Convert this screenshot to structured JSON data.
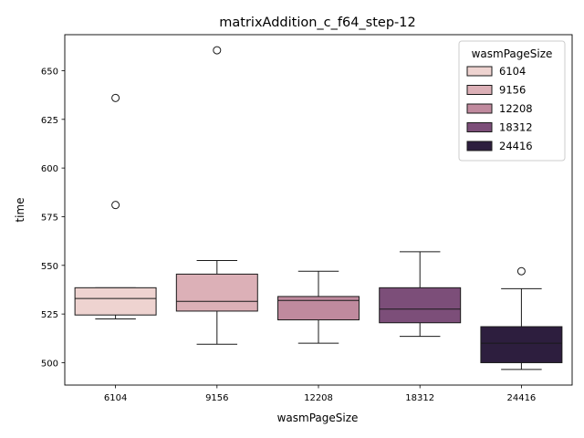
{
  "chart_data": {
    "type": "box",
    "title": "matrixAddition_c_f64_step-12",
    "xlabel": "wasmPageSize",
    "ylabel": "time",
    "ylim": [
      488.5,
      668.5
    ],
    "yticks": [
      500,
      525,
      550,
      575,
      600,
      625,
      650
    ],
    "categories": [
      "6104",
      "9156",
      "12208",
      "18312",
      "24416"
    ],
    "colors": [
      "#eed3d0",
      "#dcb0b7",
      "#c08a9e",
      "#7c4e79",
      "#2d1e3e"
    ],
    "series": [
      {
        "name": "6104",
        "whisker_low": 522.5,
        "q1": 524.5,
        "median": 533.0,
        "q3": 538.5,
        "whisker_high": 538.5,
        "outliers": [
          581,
          636
        ]
      },
      {
        "name": "9156",
        "whisker_low": 509.5,
        "q1": 526.5,
        "median": 531.5,
        "q3": 545.5,
        "whisker_high": 552.5,
        "outliers": [
          660.5
        ]
      },
      {
        "name": "12208",
        "whisker_low": 510.0,
        "q1": 522.0,
        "median": 532.0,
        "q3": 534.0,
        "whisker_high": 547.0,
        "outliers": []
      },
      {
        "name": "18312",
        "whisker_low": 513.5,
        "q1": 520.5,
        "median": 527.5,
        "q3": 538.5,
        "whisker_high": 557.0,
        "outliers": []
      },
      {
        "name": "24416",
        "whisker_low": 496.5,
        "q1": 500.0,
        "median": 510.0,
        "q3": 518.5,
        "whisker_high": 538.0,
        "outliers": [
          547.0
        ]
      }
    ],
    "legend": {
      "title": "wasmPageSize",
      "placement": "top-right",
      "entries": [
        "6104",
        "9156",
        "12208",
        "18312",
        "24416"
      ]
    }
  }
}
